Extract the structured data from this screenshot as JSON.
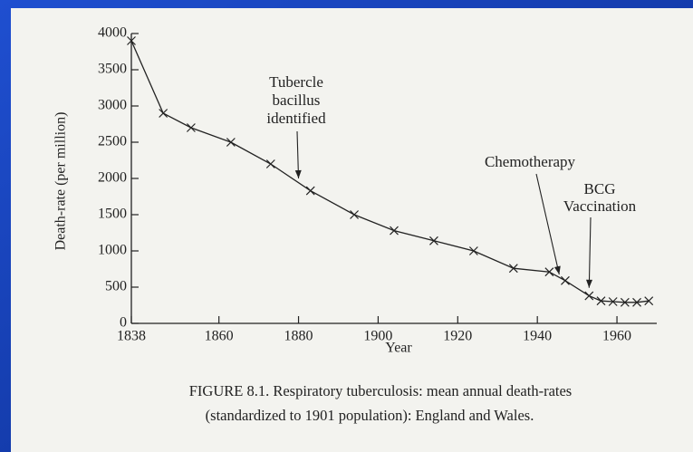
{
  "chart_data": {
    "type": "line",
    "x_label": "Year",
    "y_label": "Death-rate (per million)",
    "x": [
      1838,
      1846,
      1853,
      1863,
      1873,
      1883,
      1894,
      1904,
      1914,
      1924,
      1934,
      1943,
      1947,
      1953,
      1956,
      1959,
      1962,
      1965,
      1968
    ],
    "series": [
      {
        "name": "Respiratory tuberculosis",
        "color": "#222222",
        "values": [
          3900,
          2900,
          2700,
          2500,
          2200,
          1830,
          1500,
          1280,
          1140,
          1000,
          760,
          710,
          590,
          380,
          310,
          300,
          290,
          290,
          310
        ]
      }
    ],
    "xlim": [
      1838,
      1970
    ],
    "xticks": [
      1838,
      1860,
      1880,
      1900,
      1920,
      1940,
      1960
    ],
    "ylim": [
      0,
      4000
    ],
    "yticks": [
      0,
      500,
      1000,
      1500,
      2000,
      2500,
      3000,
      3500,
      4000
    ],
    "annotations": [
      {
        "lines": [
          "Tubercle",
          "bacillus",
          "identified"
        ],
        "x": 1880,
        "y": 2000
      },
      {
        "lines": [
          "Chemotherapy"
        ],
        "x": 1945.5,
        "y": 675
      },
      {
        "lines": [
          "BCG",
          "Vaccination"
        ],
        "x": 1953,
        "y": 490
      }
    ],
    "caption": [
      "FIGURE 8.1. Respiratory tuberculosis: mean annual death-rates",
      "(standardized to 1901 population): England and Wales."
    ]
  }
}
